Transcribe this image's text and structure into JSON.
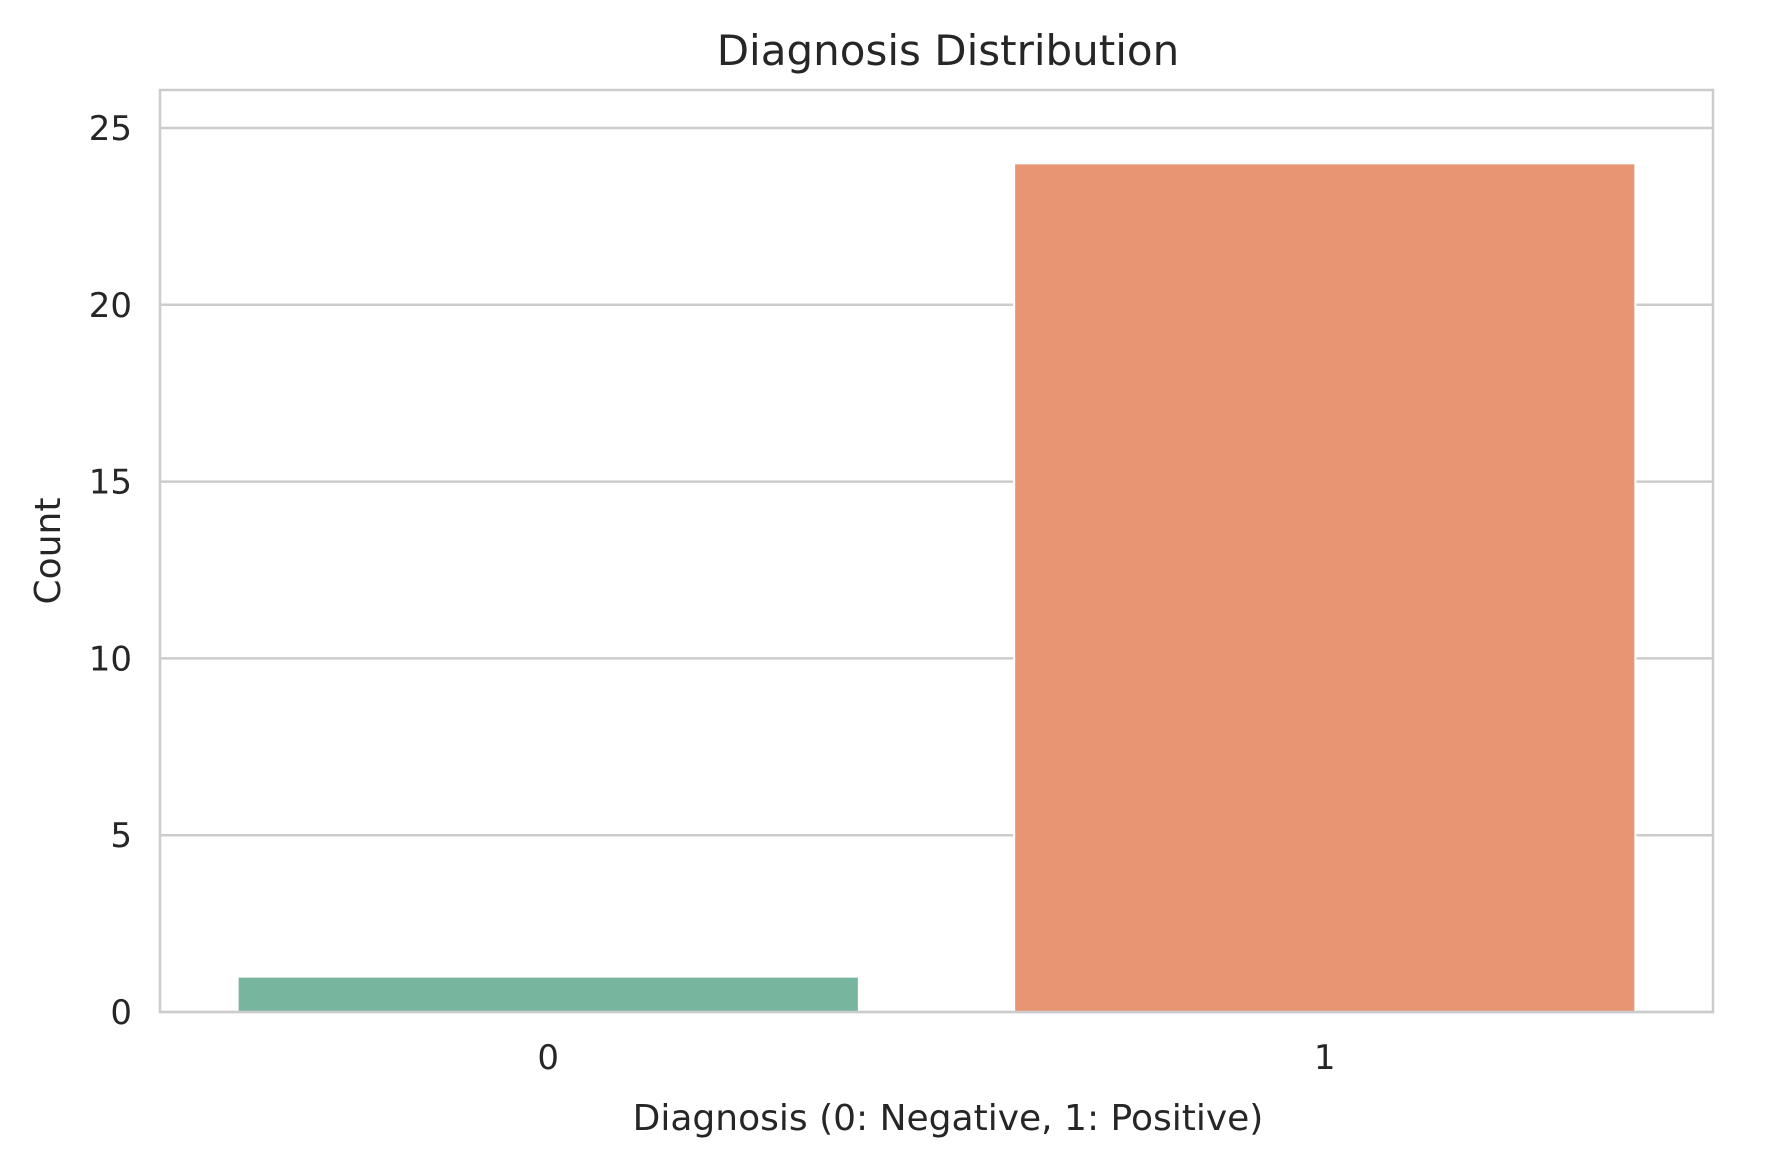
{
  "chart_data": {
    "type": "bar",
    "title": "Diagnosis Distribution",
    "xlabel": "Diagnosis (0: Negative, 1: Positive)",
    "ylabel": "Count",
    "categories": [
      "0",
      "1"
    ],
    "values": [
      1,
      24
    ],
    "colors": [
      "#77b59f",
      "#e89574"
    ],
    "ylim": [
      0,
      25
    ],
    "yticks": [
      0,
      5,
      10,
      15,
      20,
      25
    ],
    "grid": "horizontal",
    "gridColor": "#cccccc",
    "frameColor": "#cccccc",
    "textColor": "#262626"
  }
}
